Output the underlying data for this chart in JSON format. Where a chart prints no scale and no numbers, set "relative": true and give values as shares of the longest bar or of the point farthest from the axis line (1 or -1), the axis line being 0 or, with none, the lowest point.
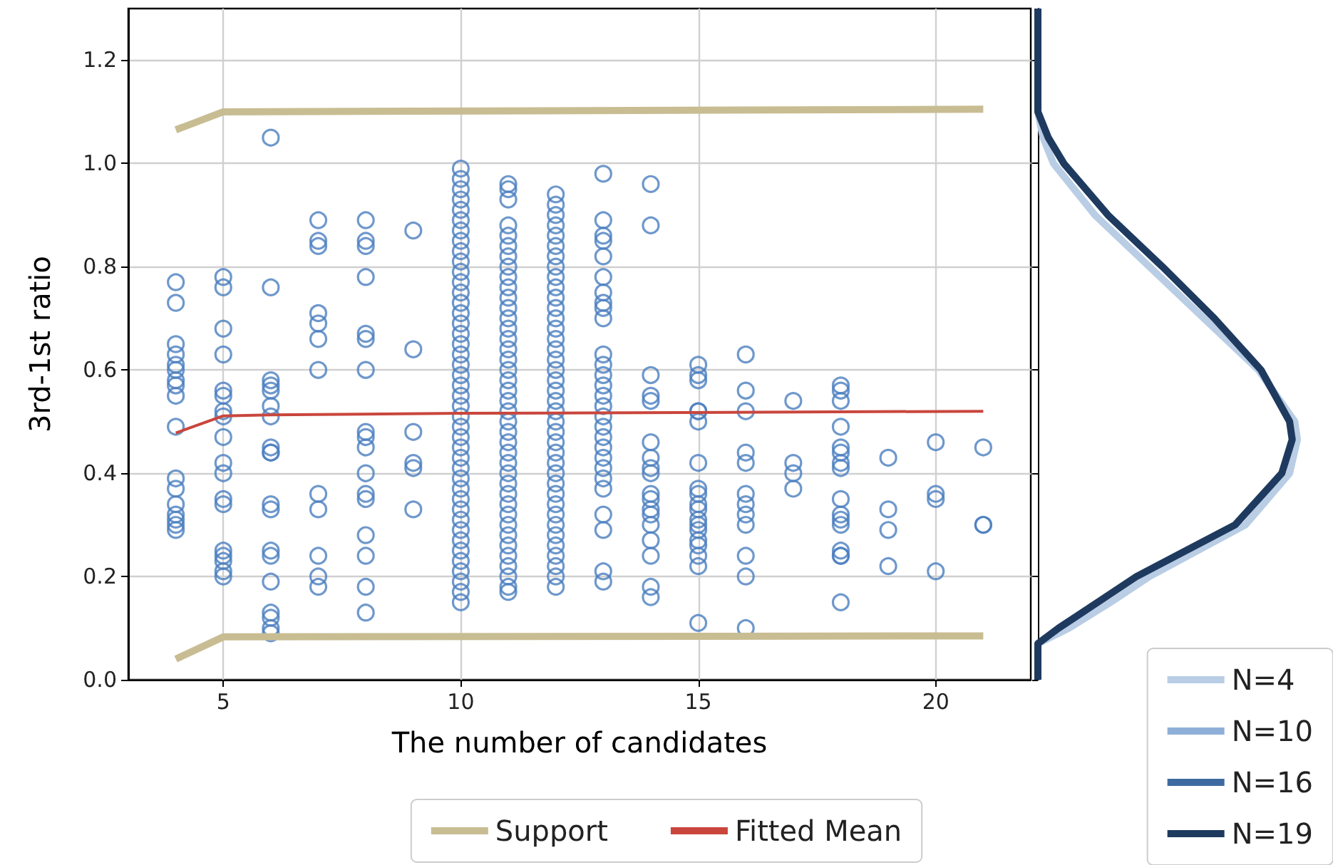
{
  "chart_data": [
    {
      "type": "scatter",
      "xlabel": "The number of candidates",
      "ylabel": "3rd-1st ratio",
      "xlim": [
        3,
        22
      ],
      "xticks": [
        5,
        10,
        15,
        20
      ],
      "ylim": [
        0,
        1.3
      ],
      "yticks": [
        {
          "value": 0,
          "label": "0.0"
        },
        {
          "value": 0.2,
          "label": "0.2"
        },
        {
          "value": 0.4,
          "label": "0.4"
        },
        {
          "value": 0.6,
          "label": "0.6"
        },
        {
          "value": 0.8,
          "label": "0.8"
        },
        {
          "value": 1,
          "label": "1.0"
        },
        {
          "value": 1.2,
          "label": "1.2"
        }
      ],
      "grid": true,
      "legend": "bottom",
      "series": [
        {
          "color": "#4a7ebf",
          "marker": "circle",
          "x": [
            4,
            4,
            4,
            4,
            4,
            4,
            4,
            4,
            4,
            4,
            4,
            4,
            4,
            4,
            4,
            4,
            4
          ],
          "values": [
            0.77,
            0.73,
            0.65,
            0.63,
            0.61,
            0.6,
            0.58,
            0.57,
            0.55,
            0.49,
            0.39,
            0.37,
            0.34,
            0.32,
            0.31,
            0.3,
            0.29
          ]
        },
        {
          "color": "#4a7ebf",
          "marker": "circle",
          "x": [
            5,
            5,
            5,
            5,
            5,
            5,
            5,
            5,
            5,
            5,
            5,
            5,
            5,
            5,
            5,
            5,
            5,
            5
          ],
          "values": [
            0.78,
            0.76,
            0.68,
            0.63,
            0.56,
            0.55,
            0.52,
            0.51,
            0.47,
            0.42,
            0.4,
            0.35,
            0.34,
            0.25,
            0.24,
            0.23,
            0.21,
            0.2
          ]
        },
        {
          "color": "#4a7ebf",
          "marker": "circle",
          "x": [
            6,
            6,
            6,
            6,
            6,
            6,
            6,
            6,
            6,
            6,
            6,
            6,
            6,
            6,
            6,
            6,
            6,
            6,
            6
          ],
          "values": [
            1.05,
            0.76,
            0.58,
            0.57,
            0.56,
            0.53,
            0.51,
            0.45,
            0.44,
            0.44,
            0.34,
            0.33,
            0.25,
            0.24,
            0.19,
            0.13,
            0.12,
            0.1,
            0.09
          ]
        },
        {
          "color": "#4a7ebf",
          "marker": "circle",
          "x": [
            7,
            7,
            7,
            7,
            7,
            7,
            7,
            7,
            7,
            7,
            7,
            7
          ],
          "values": [
            0.89,
            0.85,
            0.84,
            0.71,
            0.69,
            0.66,
            0.6,
            0.36,
            0.33,
            0.24,
            0.2,
            0.18
          ]
        },
        {
          "color": "#4a7ebf",
          "marker": "circle",
          "x": [
            8,
            8,
            8,
            8,
            8,
            8,
            8,
            8,
            8,
            8,
            8,
            8,
            8,
            8,
            8,
            8,
            8
          ],
          "values": [
            0.89,
            0.85,
            0.84,
            0.78,
            0.67,
            0.66,
            0.6,
            0.48,
            0.47,
            0.45,
            0.4,
            0.36,
            0.35,
            0.28,
            0.24,
            0.18,
            0.13
          ]
        },
        {
          "color": "#4a7ebf",
          "marker": "circle",
          "x": [
            9,
            9,
            9,
            9,
            9,
            9
          ],
          "values": [
            0.87,
            0.64,
            0.48,
            0.42,
            0.41,
            0.33
          ]
        },
        {
          "color": "#4a7ebf",
          "marker": "circle",
          "x": [
            10,
            10,
            10,
            10,
            10,
            10,
            10,
            10,
            10,
            10,
            10,
            10,
            10,
            10,
            10,
            10,
            10,
            10,
            10,
            10,
            10,
            10,
            10,
            10,
            10,
            10,
            10,
            10,
            10,
            10,
            10,
            10,
            10,
            10,
            10,
            10,
            10,
            10,
            10,
            10,
            10,
            10,
            10
          ],
          "values": [
            0.99,
            0.97,
            0.95,
            0.93,
            0.91,
            0.89,
            0.87,
            0.85,
            0.83,
            0.81,
            0.79,
            0.77,
            0.75,
            0.73,
            0.71,
            0.69,
            0.67,
            0.65,
            0.63,
            0.61,
            0.59,
            0.57,
            0.55,
            0.53,
            0.51,
            0.49,
            0.47,
            0.45,
            0.43,
            0.41,
            0.39,
            0.37,
            0.35,
            0.33,
            0.31,
            0.29,
            0.27,
            0.25,
            0.23,
            0.21,
            0.19,
            0.17,
            0.15
          ]
        },
        {
          "color": "#4a7ebf",
          "marker": "circle",
          "x": [
            11,
            11,
            11,
            11,
            11,
            11,
            11,
            11,
            11,
            11,
            11,
            11,
            11,
            11,
            11,
            11,
            11,
            11,
            11,
            11,
            11,
            11,
            11,
            11,
            11,
            11,
            11,
            11,
            11,
            11,
            11,
            11,
            11,
            11,
            11,
            11,
            11,
            11,
            11,
            11
          ],
          "values": [
            0.96,
            0.95,
            0.93,
            0.88,
            0.86,
            0.84,
            0.82,
            0.8,
            0.78,
            0.76,
            0.74,
            0.72,
            0.7,
            0.68,
            0.66,
            0.64,
            0.62,
            0.6,
            0.58,
            0.56,
            0.54,
            0.52,
            0.5,
            0.48,
            0.46,
            0.44,
            0.42,
            0.4,
            0.38,
            0.36,
            0.34,
            0.32,
            0.3,
            0.28,
            0.26,
            0.24,
            0.22,
            0.2,
            0.18,
            0.17
          ]
        },
        {
          "color": "#4a7ebf",
          "marker": "circle",
          "x": [
            12,
            12,
            12,
            12,
            12,
            12,
            12,
            12,
            12,
            12,
            12,
            12,
            12,
            12,
            12,
            12,
            12,
            12,
            12,
            12,
            12,
            12,
            12,
            12,
            12,
            12,
            12,
            12,
            12,
            12,
            12,
            12,
            12,
            12,
            12,
            12,
            12,
            12,
            12
          ],
          "values": [
            0.94,
            0.92,
            0.9,
            0.88,
            0.86,
            0.84,
            0.82,
            0.8,
            0.78,
            0.76,
            0.74,
            0.72,
            0.7,
            0.68,
            0.66,
            0.64,
            0.62,
            0.6,
            0.58,
            0.56,
            0.54,
            0.52,
            0.5,
            0.48,
            0.46,
            0.44,
            0.42,
            0.4,
            0.38,
            0.36,
            0.34,
            0.32,
            0.3,
            0.28,
            0.26,
            0.24,
            0.22,
            0.2,
            0.18
          ]
        },
        {
          "color": "#4a7ebf",
          "marker": "circle",
          "x": [
            13,
            13,
            13,
            13,
            13,
            13,
            13,
            13,
            13,
            13,
            13,
            13,
            13,
            13,
            13,
            13,
            13,
            13,
            13,
            13,
            13,
            13,
            13,
            13,
            13,
            13,
            13,
            13
          ],
          "values": [
            0.98,
            0.89,
            0.86,
            0.85,
            0.82,
            0.78,
            0.75,
            0.73,
            0.72,
            0.7,
            0.63,
            0.61,
            0.59,
            0.57,
            0.55,
            0.53,
            0.51,
            0.49,
            0.47,
            0.45,
            0.43,
            0.41,
            0.39,
            0.37,
            0.32,
            0.29,
            0.21,
            0.19
          ]
        },
        {
          "color": "#4a7ebf",
          "marker": "circle",
          "x": [
            14,
            14,
            14,
            14,
            14,
            14,
            14,
            14,
            14,
            14,
            14,
            14,
            14,
            14,
            14,
            14,
            14,
            14
          ],
          "values": [
            0.96,
            0.88,
            0.59,
            0.55,
            0.54,
            0.46,
            0.43,
            0.41,
            0.4,
            0.36,
            0.35,
            0.33,
            0.32,
            0.3,
            0.27,
            0.24,
            0.18,
            0.16
          ]
        },
        {
          "color": "#4a7ebf",
          "marker": "circle",
          "x": [
            15,
            15,
            15,
            15,
            15,
            15,
            15,
            15,
            15,
            15,
            15,
            15,
            15,
            15,
            15,
            15,
            15,
            15,
            15
          ],
          "values": [
            0.61,
            0.59,
            0.58,
            0.52,
            0.52,
            0.5,
            0.42,
            0.37,
            0.36,
            0.34,
            0.33,
            0.31,
            0.3,
            0.29,
            0.27,
            0.26,
            0.24,
            0.22,
            0.11
          ]
        },
        {
          "color": "#4a7ebf",
          "marker": "circle",
          "x": [
            16,
            16,
            16,
            16,
            16,
            16,
            16,
            16,
            16,
            16,
            16,
            16
          ],
          "values": [
            0.63,
            0.56,
            0.52,
            0.44,
            0.42,
            0.36,
            0.34,
            0.32,
            0.3,
            0.24,
            0.2,
            0.1
          ]
        },
        {
          "color": "#4a7ebf",
          "marker": "circle",
          "x": [
            17,
            17,
            17,
            17
          ],
          "values": [
            0.54,
            0.42,
            0.4,
            0.37
          ]
        },
        {
          "color": "#4a7ebf",
          "marker": "circle",
          "x": [
            18,
            18,
            18,
            18,
            18,
            18,
            18,
            18,
            18,
            18,
            18,
            18,
            18,
            18,
            18,
            18
          ],
          "values": [
            0.57,
            0.56,
            0.54,
            0.49,
            0.45,
            0.44,
            0.42,
            0.41,
            0.35,
            0.32,
            0.31,
            0.3,
            0.25,
            0.24,
            0.24,
            0.15
          ]
        },
        {
          "color": "#4a7ebf",
          "marker": "circle",
          "x": [
            19,
            19,
            19,
            19
          ],
          "values": [
            0.43,
            0.33,
            0.29,
            0.22
          ]
        },
        {
          "color": "#4a7ebf",
          "marker": "circle",
          "x": [
            20,
            20,
            20,
            20
          ],
          "values": [
            0.46,
            0.36,
            0.35,
            0.21
          ]
        },
        {
          "color": "#4a7ebf",
          "marker": "circle",
          "x": [
            21,
            21,
            21
          ],
          "values": [
            0.45,
            0.3,
            0.3
          ]
        },
        {
          "name": "Support",
          "type": "line",
          "marker": "none",
          "color": "#c8bd92",
          "x": [
            4,
            5,
            21
          ],
          "values": [
            1.065,
            1.1,
            1.105
          ]
        },
        {
          "type": "line",
          "marker": "none",
          "color": "#c8bd92",
          "x": [
            4,
            5,
            21
          ],
          "values": [
            0.04,
            0.083,
            0.085
          ]
        },
        {
          "name": "Fitted Mean",
          "type": "line",
          "marker": "none",
          "color": "#c9463d",
          "x": [
            4,
            5,
            6,
            10,
            21
          ],
          "values": [
            0.478,
            0.511,
            0.513,
            0.516,
            0.52
          ]
        }
      ]
    },
    {
      "type": "line",
      "orientation": "horizontal",
      "relative": true,
      "ylim": [
        0,
        1.3
      ],
      "yticks": [
        0,
        0.2,
        0.4,
        0.6,
        0.8,
        1,
        1.2
      ],
      "tick_labels": false,
      "legend": "bottom right",
      "x": [
        0,
        0.07,
        0.1,
        0.15,
        0.2,
        0.3,
        0.4,
        0.465,
        0.5,
        0.6,
        0.7,
        0.8,
        0.9,
        1.0,
        1.05,
        1.1,
        1.3
      ],
      "series": [
        {
          "name": "N=4",
          "color": "#b9cde5",
          "values": [
            0,
            0,
            0.12,
            0.28,
            0.43,
            0.8,
            0.97,
            1,
            0.99,
            0.85,
            0.64,
            0.43,
            0.22,
            0.06,
            0.02,
            0,
            0
          ]
        },
        {
          "name": "N=10",
          "color": "#8eb0d8",
          "values": [
            null,
            null,
            null,
            null,
            null,
            null,
            null,
            null,
            null,
            null,
            null,
            null,
            null,
            null,
            null,
            null,
            null
          ]
        },
        {
          "name": "N=16",
          "color": "#3d6aa0",
          "values": [
            null,
            null,
            null,
            null,
            null,
            null,
            null,
            null,
            null,
            null,
            null,
            null,
            null,
            null,
            null,
            null,
            null
          ]
        },
        {
          "name": "N=19",
          "color": "#1f3a5f",
          "values": [
            0,
            0,
            0.08,
            0.23,
            0.38,
            0.76,
            0.94,
            0.98,
            0.97,
            0.86,
            0.68,
            0.48,
            0.27,
            0.1,
            0.04,
            0,
            0
          ]
        }
      ]
    }
  ]
}
